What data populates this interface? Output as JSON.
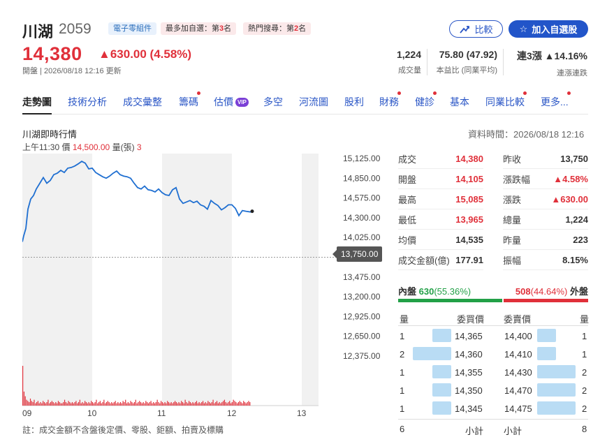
{
  "header": {
    "name": "川湖",
    "code": "2059",
    "badges": {
      "industry": "電子零組件",
      "watch_prefix": "最多加自選：第",
      "watch_rank": "3",
      "watch_suffix": "名",
      "search_prefix": "熱門搜尋：第",
      "search_rank": "2",
      "search_suffix": "名"
    },
    "compare_label": "比較",
    "add_watch_label": "加入自選股",
    "price": "14,380",
    "change": "▲630.00 (4.58%)",
    "status": "開盤 | 2026/08/18 12:16 更新",
    "stats": [
      {
        "value": "1,224",
        "label": "成交量"
      },
      {
        "value": "75.80 (47.92)",
        "label": "本益比 (同業平均)"
      },
      {
        "value_prefix": "連3漲",
        "value_suffix": "▲14.16%",
        "label": "連漲連跌"
      }
    ]
  },
  "tabs": [
    {
      "label": "走勢圖",
      "active": true,
      "dot": false
    },
    {
      "label": "技術分析",
      "dot": false
    },
    {
      "label": "成交彙整",
      "dot": false
    },
    {
      "label": "籌碼",
      "dot": true
    },
    {
      "label": "估價",
      "dot": false,
      "vip": "VIP"
    },
    {
      "label": "多空",
      "dot": false
    },
    {
      "label": "河流圖",
      "dot": false
    },
    {
      "label": "股利",
      "dot": false
    },
    {
      "label": "財務",
      "dot": true
    },
    {
      "label": "健診",
      "dot": true
    },
    {
      "label": "基本",
      "dot": false
    },
    {
      "label": "同業比較",
      "dot": true
    },
    {
      "label": "更多...",
      "dot": true
    }
  ],
  "section": {
    "title": "川湖即時行情",
    "data_time": "資料時間：2026/08/18 12:16",
    "tick_time": "上午11:30",
    "tick_price_label": "價",
    "tick_price": "14,500.00",
    "tick_vol_label": "量(張)",
    "tick_vol": "3"
  },
  "chart_data": {
    "type": "line",
    "y_ticks": [
      "15,125.00",
      "14,850.00",
      "14,575.00",
      "14,300.00",
      "14,025.00",
      "13,750.00",
      "13,475.00",
      "13,200.00",
      "12,925.00",
      "12,650.00",
      "12,375.00"
    ],
    "ylim": [
      12375,
      15125
    ],
    "x_ticks": [
      "09",
      "10",
      "11",
      "12",
      "13"
    ],
    "prev_close": "13,750.00",
    "series": [
      {
        "x": [
          9.0,
          9.02,
          9.05,
          9.08,
          9.12,
          9.16,
          9.2,
          9.25,
          9.3,
          9.35,
          9.4,
          9.45,
          9.5,
          9.55,
          9.6,
          9.65,
          9.7,
          9.75,
          9.8,
          9.85,
          9.9,
          9.95,
          10.0,
          10.05,
          10.1,
          10.15,
          10.2,
          10.25,
          10.3,
          10.35,
          10.4,
          10.45,
          10.5,
          10.55,
          10.6,
          10.65,
          10.7,
          10.75,
          10.8,
          10.85,
          10.9,
          10.95,
          11.0,
          11.05,
          11.1,
          11.15,
          11.2,
          11.25,
          11.3,
          11.35,
          11.4,
          11.45,
          11.5,
          11.55,
          11.6,
          11.65,
          11.7,
          11.75,
          11.8,
          11.85,
          11.9,
          11.95,
          12.0,
          12.05,
          12.1,
          12.15,
          12.2,
          12.27
        ],
        "values": [
          13965,
          14050,
          14150,
          14420,
          14560,
          14610,
          14700,
          14780,
          14860,
          14780,
          14820,
          14900,
          14920,
          14960,
          14930,
          14990,
          15000,
          15020,
          15050,
          15085,
          15060,
          14980,
          14990,
          14930,
          14900,
          14870,
          14850,
          14880,
          14920,
          14950,
          14900,
          14880,
          14870,
          14850,
          14780,
          14720,
          14700,
          14740,
          14690,
          14680,
          14660,
          14700,
          14650,
          14620,
          14610,
          14690,
          14720,
          14560,
          14500,
          14520,
          14540,
          14510,
          14530,
          14480,
          14460,
          14420,
          14540,
          14500,
          14470,
          14410,
          14440,
          14480,
          14480,
          14430,
          14330,
          14400,
          14390,
          14380
        ]
      }
    ],
    "volume": [
      34,
      12,
      8,
      5,
      4,
      3,
      6,
      4,
      3,
      5,
      2,
      3,
      4,
      2,
      3,
      2,
      4,
      3,
      2,
      3,
      5,
      2,
      3,
      4,
      3,
      2,
      3,
      2,
      4,
      3,
      2,
      2,
      3,
      5,
      3,
      2,
      4,
      3,
      2,
      3,
      2,
      3,
      4,
      2,
      3,
      5,
      2,
      3,
      2,
      4,
      3,
      2,
      3,
      2,
      4,
      3,
      2,
      3,
      5,
      2,
      3,
      4,
      2,
      3,
      5,
      2,
      3,
      4,
      3,
      2,
      3,
      2,
      3,
      4,
      2,
      3,
      2,
      3,
      2,
      4,
      3,
      5,
      2,
      3,
      2,
      4,
      3,
      2,
      3,
      5,
      2,
      3,
      4,
      3,
      2,
      3,
      2,
      4,
      3,
      2,
      3,
      4,
      2,
      3,
      2,
      3,
      5,
      3,
      2,
      4,
      3,
      2,
      3,
      2,
      4,
      3,
      2,
      3,
      2,
      3,
      4,
      3,
      2,
      3,
      2,
      4,
      3,
      2,
      5,
      3,
      2,
      4,
      3,
      2,
      3,
      2,
      3,
      4,
      2,
      3,
      2,
      3,
      4,
      2,
      3,
      2,
      4,
      3,
      2,
      3,
      5,
      2,
      3,
      4,
      2,
      3,
      2,
      3,
      4,
      5,
      3,
      2,
      3,
      4,
      2,
      3,
      5,
      4,
      3,
      2,
      3,
      4,
      3,
      2,
      4,
      3,
      2,
      3,
      4,
      3
    ]
  },
  "quote": {
    "left": [
      {
        "label": "成交",
        "value": "14,380",
        "color": "#e0303a"
      },
      {
        "label": "開盤",
        "value": "14,105",
        "color": "#e0303a"
      },
      {
        "label": "最高",
        "value": "15,085",
        "color": "#e0303a"
      },
      {
        "label": "最低",
        "value": "13,965",
        "color": "#e0303a"
      },
      {
        "label": "均價",
        "value": "14,535",
        "color": "#333333"
      },
      {
        "label": "成交金額(億)",
        "value": "177.91",
        "color": "#333333"
      }
    ],
    "right": [
      {
        "label": "昨收",
        "value": "13,750",
        "color": "#333333"
      },
      {
        "label": "漲跌幅",
        "value": "▲4.58%",
        "color": "#e0303a"
      },
      {
        "label": "漲跌",
        "value": "▲630.00",
        "color": "#e0303a"
      },
      {
        "label": "總量",
        "value": "1,224",
        "color": "#333333"
      },
      {
        "label": "昨量",
        "value": "223",
        "color": "#333333"
      },
      {
        "label": "振幅",
        "value": "8.15%",
        "color": "#333333"
      }
    ]
  },
  "orderbook": {
    "inner_label": "內盤",
    "inner_value": "630",
    "inner_pct": "(55.36%)",
    "inner_share": 0.5536,
    "outer_value": "508",
    "outer_pct": "(44.64%)",
    "outer_label": "外盤",
    "head_bid_qty": "量",
    "head_bid_price": "委買價",
    "head_ask_price": "委賣價",
    "head_ask_qty": "量",
    "bids": [
      {
        "qty": "1",
        "price": "14,365",
        "share": 0.35
      },
      {
        "qty": "2",
        "price": "14,360",
        "share": 0.72
      },
      {
        "qty": "1",
        "price": "14,355",
        "share": 0.35
      },
      {
        "qty": "1",
        "price": "14,350",
        "share": 0.35
      },
      {
        "qty": "1",
        "price": "14,345",
        "share": 0.35
      }
    ],
    "asks": [
      {
        "price": "14,400",
        "qty": "1",
        "share": 0.35
      },
      {
        "price": "14,410",
        "qty": "1",
        "share": 0.35
      },
      {
        "price": "14,430",
        "qty": "2",
        "share": 0.72
      },
      {
        "price": "14,470",
        "qty": "2",
        "share": 0.72
      },
      {
        "price": "14,475",
        "qty": "2",
        "share": 0.72
      }
    ],
    "bid_total": "6",
    "bid_total_label": "小計",
    "ask_total_label": "小計",
    "ask_total": "8"
  },
  "footnote": "註：成交金額不含盤後定價、零股、鉅額、拍賣及標購"
}
